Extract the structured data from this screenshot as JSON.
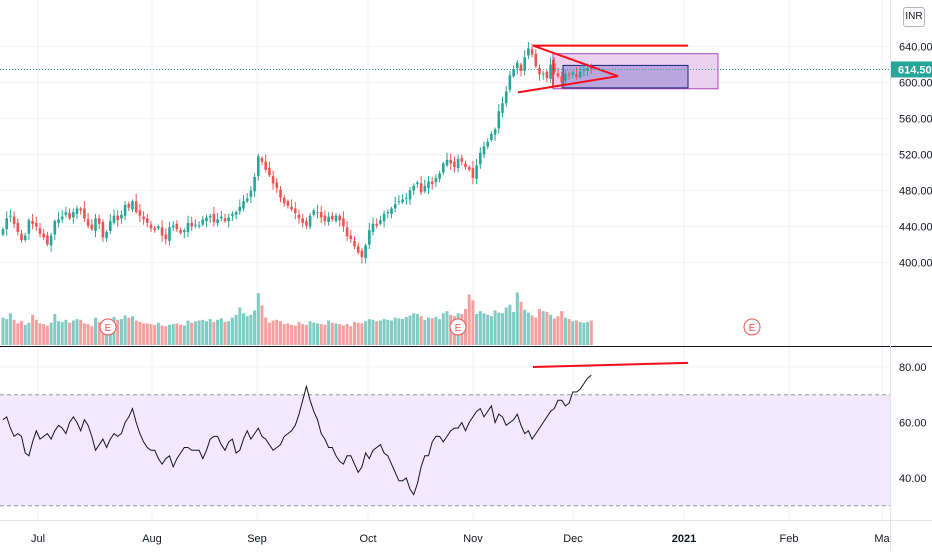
{
  "currency": "INR",
  "last_price_label": "614.50",
  "colors": {
    "up": "#26a69a",
    "down": "#ef5350",
    "vol_up": "#80cbc4",
    "vol_down": "#f4a09e",
    "rsi_line": "#131722",
    "rsi_band": "#f3e8fd",
    "annotation": "#f70d1a",
    "box_outer": "#e1bee7",
    "box_inner": "#b39ddb",
    "grid": "#f0f3fa",
    "last_price": "#26a69a"
  },
  "chart_data": [
    {
      "type": "candlestick",
      "name": "price",
      "ylim": [
        385,
        650
      ],
      "y_ticks": [
        400,
        440,
        480,
        520,
        560,
        600,
        640
      ],
      "y_tick_labels": [
        "400.00",
        "440.00",
        "480.00",
        "520.00",
        "560.00",
        "600.00",
        "640.00"
      ],
      "x_labels": [
        "Jul",
        "Aug",
        "Sep",
        "Oct",
        "Nov",
        "Dec",
        "2021",
        "Feb",
        "Ma"
      ],
      "last_price": 614.5,
      "earnings_markers": [
        "E",
        "E",
        "E"
      ],
      "close": [
        437,
        449,
        452,
        443,
        434,
        425,
        430,
        447,
        443,
        440,
        432,
        428,
        420,
        430,
        446,
        448,
        451,
        456,
        449,
        456,
        460,
        458,
        449,
        441,
        437,
        449,
        443,
        428,
        434,
        446,
        452,
        447,
        453,
        464,
        461,
        468,
        456,
        452,
        448,
        444,
        438,
        436,
        440,
        430,
        426,
        439,
        441,
        437,
        433,
        436,
        444,
        440,
        442,
        441,
        448,
        450,
        452,
        445,
        448,
        451,
        446,
        450,
        454,
        456,
        462,
        468,
        471,
        480,
        495,
        518,
        512,
        503,
        497,
        488,
        483,
        472,
        466,
        463,
        459,
        455,
        449,
        444,
        441,
        452,
        458,
        456,
        450,
        446,
        451,
        448,
        452,
        447,
        440,
        429,
        426,
        418,
        411,
        406,
        419,
        436,
        443,
        441,
        447,
        454,
        456,
        460,
        465,
        468,
        470,
        472,
        480,
        485,
        489,
        478,
        485,
        490,
        487,
        494,
        499,
        510,
        514,
        510,
        506,
        515,
        512,
        506,
        503,
        494,
        508,
        522,
        529,
        534,
        543,
        548,
        568,
        577,
        590,
        608,
        615,
        622,
        613,
        628,
        638,
        631,
        618,
        609,
        610,
        605,
        620,
        612,
        607,
        600,
        610,
        608,
        611,
        606,
        612,
        614,
        616,
        614.5
      ],
      "volume": [
        38,
        36,
        44,
        35,
        30,
        33,
        28,
        31,
        42,
        35,
        30,
        29,
        27,
        31,
        43,
        33,
        32,
        35,
        31,
        34,
        36,
        35,
        30,
        29,
        26,
        38,
        32,
        28,
        33,
        36,
        39,
        35,
        36,
        41,
        38,
        40,
        34,
        32,
        30,
        30,
        29,
        28,
        31,
        27,
        26,
        28,
        29,
        30,
        28,
        27,
        34,
        31,
        33,
        34,
        35,
        33,
        36,
        32,
        35,
        37,
        32,
        33,
        38,
        42,
        52,
        44,
        40,
        42,
        48,
        72,
        55,
        38,
        31,
        34,
        35,
        33,
        29,
        30,
        28,
        27,
        32,
        29,
        28,
        33,
        31,
        30,
        29,
        28,
        34,
        31,
        30,
        29,
        27,
        29,
        26,
        32,
        31,
        30,
        33,
        36,
        35,
        33,
        34,
        36,
        35,
        34,
        38,
        37,
        36,
        39,
        41,
        44,
        43,
        40,
        35,
        38,
        37,
        39,
        36,
        44,
        47,
        42,
        40,
        44,
        43,
        50,
        70,
        62,
        43,
        47,
        44,
        42,
        40,
        48,
        45,
        44,
        52,
        56,
        46,
        73,
        60,
        49,
        45,
        41,
        38,
        50,
        47,
        46,
        42,
        37,
        40,
        47,
        38,
        36,
        33,
        34,
        32,
        31,
        32,
        34
      ],
      "overlays": [
        "symmetrical triangle",
        "rectangle range boxes",
        "resistance trendline"
      ]
    },
    {
      "type": "line",
      "name": "rsi",
      "ylim": [
        22,
        87
      ],
      "y_ticks": [
        40,
        60,
        80
      ],
      "y_tick_labels": [
        "40.00",
        "60.00",
        "80.00"
      ],
      "bands": [
        30,
        70
      ],
      "values": [
        61,
        62,
        58,
        55,
        56,
        55,
        49,
        48,
        53,
        57,
        54,
        55,
        56,
        54,
        57,
        59,
        58,
        56,
        60,
        62,
        60,
        57,
        61,
        59,
        55,
        50,
        52,
        54,
        51,
        54,
        56,
        55,
        56,
        60,
        62,
        65,
        60,
        56,
        53,
        51,
        50,
        50,
        47,
        45,
        47,
        48,
        44,
        47,
        49,
        51,
        51,
        50,
        50,
        50,
        47,
        50,
        54,
        55,
        55,
        52,
        50,
        53,
        54,
        49,
        50,
        54,
        57,
        54,
        56,
        58,
        55,
        54,
        52,
        50,
        51,
        52,
        55,
        56,
        57,
        59,
        63,
        68,
        73,
        68,
        64,
        61,
        56,
        54,
        51,
        51,
        48,
        46,
        45,
        48,
        48,
        45,
        42,
        44,
        49,
        47,
        50,
        51,
        52,
        49,
        48,
        45,
        42,
        39,
        39,
        40,
        36,
        34,
        38,
        44,
        48,
        48,
        53,
        55,
        55,
        53,
        55,
        57,
        58,
        58,
        60,
        57,
        60,
        62,
        64,
        65,
        62,
        64,
        66,
        60,
        63,
        62,
        59,
        60,
        61,
        63,
        59,
        56,
        57,
        54,
        56,
        58,
        60,
        62,
        64,
        65,
        68,
        68,
        66,
        67,
        71,
        71,
        72,
        74,
        76,
        77
      ]
    }
  ]
}
